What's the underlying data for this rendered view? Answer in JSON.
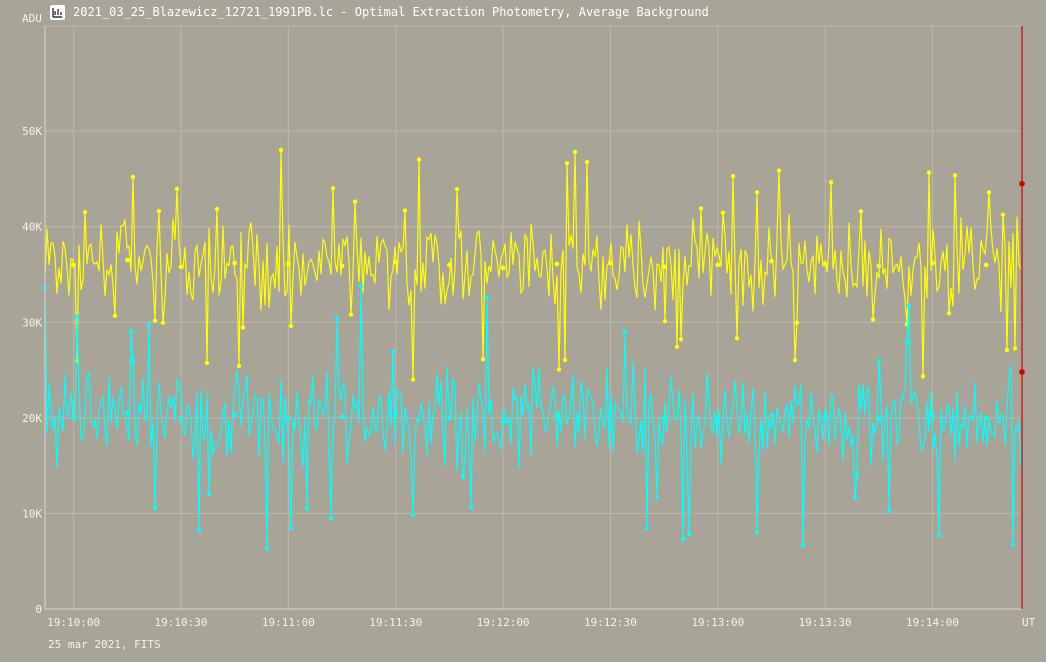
{
  "window": {
    "title": "2021_03_25_Blazewicz_12721_1991PB.lc - Optimal Extraction Photometry, Average Background",
    "icon": "chart-window-icon"
  },
  "footer": {
    "text": "25 mar 2021, FITS"
  },
  "colors": {
    "background": "#a8a497",
    "grid": "#bdb9ad",
    "series_1": "#ffff00",
    "series_2": "#00ffff",
    "cursor": "#cc0000"
  },
  "chart_data": {
    "type": "line",
    "title": "",
    "xlabel": "UT",
    "ylabel": "ADU",
    "ylim": [
      0,
      61000
    ],
    "xlim": [
      "19:09:52",
      "19:14:25"
    ],
    "grid": true,
    "y_ticks": [
      0,
      10000,
      20000,
      30000,
      40000,
      50000
    ],
    "y_tick_labels": [
      "0",
      "10K",
      "20K",
      "30K",
      "40K",
      "50K"
    ],
    "x_tick_labels": [
      "19:10:00",
      "19:10:30",
      "19:11:00",
      "19:11:30",
      "19:12:00",
      "19:12:30",
      "19:13:00",
      "19:13:30",
      "19:14:00"
    ],
    "cursor_time": "19:14:25",
    "cursor_marks": [
      44500,
      24800
    ],
    "series": [
      {
        "color": "#ffff00",
        "x": [
          "19:10:00",
          "19:10:15",
          "19:10:30",
          "19:10:45",
          "19:11:00",
          "19:11:15",
          "19:11:30",
          "19:11:45",
          "19:12:00",
          "19:12:15",
          "19:12:30",
          "19:12:45",
          "19:13:00",
          "19:13:15",
          "19:13:30",
          "19:13:45",
          "19:14:00",
          "19:14:15"
        ],
        "y": [
          36000,
          36500,
          35800,
          36200,
          36100,
          35900,
          36300,
          36000,
          35700,
          36100,
          36200,
          35800,
          36000,
          36400,
          36100,
          35900,
          36200,
          36000
        ]
      },
      {
        "color": "#00ffff",
        "x": [
          "19:10:00",
          "19:10:15",
          "19:10:30",
          "19:10:45",
          "19:11:00",
          "19:11:15",
          "19:11:30",
          "19:11:45",
          "19:12:00",
          "19:12:15",
          "19:12:30",
          "19:12:45",
          "19:13:00",
          "19:13:15",
          "19:13:30",
          "19:13:45",
          "19:14:00",
          "19:14:15"
        ],
        "y": [
          20000,
          20500,
          19800,
          20300,
          19900,
          20100,
          20400,
          20000,
          19700,
          20200,
          20600,
          19900,
          19800,
          20300,
          20100,
          19900,
          20200,
          20000
        ]
      }
    ]
  }
}
